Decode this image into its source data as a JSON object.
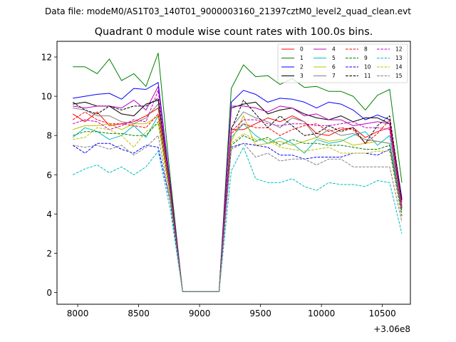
{
  "suptitle": "Data file: modeM0/AS1T03_140T01_9000003160_21397cztM0_level2_quad_clean.evt",
  "chart_data": {
    "type": "line",
    "title": "Quadrant 0 module wise count rates with 100.0s bins.",
    "xlabel": "",
    "ylabel": "",
    "x_offset_label": "+3.06e8",
    "xlim": [
      7830,
      10730
    ],
    "ylim": [
      -0.6,
      12.8
    ],
    "xticks": [
      8000,
      8500,
      9000,
      9500,
      10000,
      10500
    ],
    "xtick_labels": [
      "8000",
      "8500",
      "9000",
      "9500",
      "10000",
      "10500"
    ],
    "yticks": [
      0,
      2,
      4,
      6,
      8,
      10,
      12
    ],
    "ytick_labels": [
      "0",
      "2",
      "4",
      "6",
      "8",
      "10",
      "12"
    ],
    "grid": false,
    "legend_placement": "top-right",
    "legend_columns": 4,
    "x": [
      7960,
      8060,
      8160,
      8260,
      8360,
      8460,
      8560,
      8660,
      8760,
      8860,
      8960,
      9060,
      9160,
      9260,
      9360,
      9460,
      9560,
      9660,
      9760,
      9860,
      9960,
      10060,
      10160,
      10260,
      10360,
      10460,
      10560,
      10660
    ],
    "series": [
      {
        "name": "0",
        "color": "#ff0000",
        "dash": "solid",
        "values": [
          9.1,
          8.7,
          9.2,
          8.5,
          8.6,
          8.7,
          9.0,
          9.4,
          5.2,
          0.05,
          0.05,
          0.05,
          0.05,
          8.3,
          8.3,
          8.6,
          8.9,
          8.7,
          9.0,
          8.7,
          8.1,
          8.0,
          8.3,
          8.4,
          7.9,
          8.2,
          8.4,
          4.4
        ]
      },
      {
        "name": "1",
        "color": "#008000",
        "dash": "solid",
        "values": [
          11.5,
          11.5,
          11.15,
          11.9,
          10.8,
          11.15,
          10.5,
          12.2,
          5.8,
          0.05,
          0.05,
          0.05,
          0.05,
          10.4,
          11.6,
          11.0,
          11.05,
          10.6,
          10.9,
          10.45,
          10.5,
          10.25,
          10.25,
          10.0,
          9.3,
          10.05,
          10.35,
          5.6
        ]
      },
      {
        "name": "2",
        "color": "#0000ff",
        "dash": "solid",
        "values": [
          9.9,
          10.0,
          10.1,
          10.15,
          9.85,
          10.4,
          10.35,
          10.7,
          5.5,
          0.05,
          0.05,
          0.05,
          0.05,
          9.7,
          10.3,
          10.1,
          9.7,
          9.9,
          9.85,
          9.7,
          9.4,
          9.7,
          9.6,
          9.3,
          8.8,
          9.05,
          8.8,
          4.8
        ]
      },
      {
        "name": "3",
        "color": "#000000",
        "dash": "solid",
        "values": [
          9.6,
          9.7,
          9.5,
          9.5,
          9.1,
          9.0,
          9.6,
          9.8,
          5.4,
          0.05,
          0.05,
          0.05,
          0.05,
          9.4,
          9.6,
          9.7,
          9.1,
          9.3,
          9.4,
          9.1,
          8.9,
          8.8,
          9.0,
          8.7,
          8.9,
          8.9,
          8.6,
          4.7
        ]
      },
      {
        "name": "4",
        "color": "#bf00bf",
        "dash": "solid",
        "values": [
          9.5,
          9.4,
          9.5,
          9.5,
          9.4,
          9.8,
          9.3,
          10.5,
          5.4,
          0.05,
          0.05,
          0.05,
          0.05,
          9.5,
          9.5,
          9.4,
          9.2,
          9.5,
          9.4,
          9.0,
          9.1,
          8.8,
          8.8,
          8.5,
          8.6,
          8.7,
          8.6,
          4.6
        ]
      },
      {
        "name": "5",
        "color": "#00bfbf",
        "dash": "solid",
        "values": [
          7.9,
          8.4,
          8.2,
          7.8,
          8.0,
          8.5,
          7.9,
          9.0,
          5.0,
          0.05,
          0.05,
          0.05,
          0.05,
          7.9,
          8.6,
          8.0,
          7.6,
          7.9,
          7.6,
          7.1,
          7.8,
          7.6,
          7.7,
          8.0,
          8.2,
          7.5,
          8.0,
          4.2
        ]
      },
      {
        "name": "6",
        "color": "#bfbf00",
        "dash": "solid",
        "values": [
          8.3,
          8.5,
          8.5,
          8.6,
          8.3,
          8.6,
          8.6,
          9.0,
          5.0,
          0.05,
          0.05,
          0.05,
          0.05,
          7.7,
          9.0,
          7.5,
          7.6,
          7.7,
          7.5,
          7.7,
          7.9,
          7.7,
          7.8,
          7.5,
          7.6,
          7.7,
          7.6,
          4.2
        ]
      },
      {
        "name": "7",
        "color": "#808080",
        "dash": "solid",
        "values": [
          9.4,
          9.3,
          9.0,
          9.0,
          8.7,
          8.6,
          8.9,
          9.6,
          5.2,
          0.05,
          0.05,
          0.05,
          0.05,
          8.4,
          9.2,
          8.9,
          8.7,
          8.4,
          8.9,
          8.7,
          7.9,
          8.3,
          8.0,
          8.1,
          7.8,
          7.7,
          7.6,
          4.3
        ]
      },
      {
        "name": "8",
        "color": "#ff0000",
        "dash": "dashed",
        "values": [
          8.8,
          9.2,
          8.8,
          8.6,
          8.6,
          8.5,
          8.4,
          9.1,
          5.1,
          0.05,
          0.05,
          0.05,
          0.05,
          8.1,
          8.6,
          8.4,
          8.4,
          8.0,
          8.3,
          8.5,
          8.6,
          8.2,
          8.4,
          8.3,
          7.6,
          8.1,
          8.8,
          4.3
        ]
      },
      {
        "name": "9",
        "color": "#008000",
        "dash": "dashed",
        "values": [
          8.0,
          8.2,
          8.2,
          8.1,
          8.1,
          8.0,
          8.0,
          8.7,
          4.9,
          0.05,
          0.05,
          0.05,
          0.05,
          7.5,
          8.0,
          7.7,
          7.9,
          7.5,
          7.8,
          7.6,
          7.6,
          7.5,
          7.5,
          7.4,
          7.3,
          7.3,
          7.5,
          4.1
        ]
      },
      {
        "name": "10",
        "color": "#0000ff",
        "dash": "dashed",
        "values": [
          7.5,
          7.1,
          7.6,
          7.6,
          7.3,
          7.1,
          7.5,
          7.4,
          4.6,
          0.05,
          0.05,
          0.05,
          0.05,
          7.4,
          7.6,
          7.5,
          7.4,
          7.0,
          7.0,
          6.8,
          6.9,
          6.9,
          6.9,
          7.1,
          7.1,
          7.0,
          7.3,
          3.9
        ]
      },
      {
        "name": "11",
        "color": "#000000",
        "dash": "dashed",
        "values": [
          9.7,
          9.3,
          9.1,
          9.5,
          9.3,
          9.5,
          9.5,
          9.9,
          5.3,
          0.05,
          0.05,
          0.05,
          0.05,
          8.3,
          9.8,
          9.1,
          8.4,
          9.0,
          8.5,
          8.0,
          8.1,
          8.5,
          8.2,
          8.4,
          7.6,
          8.5,
          9.0,
          4.7
        ]
      },
      {
        "name": "12",
        "color": "#bf00bf",
        "dash": "dashed",
        "values": [
          8.6,
          8.8,
          8.7,
          8.3,
          8.5,
          8.8,
          8.7,
          10.3,
          5.3,
          0.05,
          0.05,
          0.05,
          0.05,
          8.2,
          8.8,
          8.8,
          8.6,
          8.5,
          8.6,
          8.6,
          8.5,
          8.5,
          8.6,
          8.7,
          8.4,
          8.4,
          8.3,
          4.3
        ]
      },
      {
        "name": "13",
        "color": "#00bfbf",
        "dash": "dashed",
        "values": [
          6.0,
          6.3,
          6.5,
          6.1,
          6.4,
          6.0,
          6.4,
          7.2,
          4.2,
          0.05,
          0.05,
          0.05,
          0.05,
          6.2,
          7.4,
          5.8,
          5.6,
          5.6,
          5.8,
          5.4,
          5.2,
          5.6,
          5.5,
          5.5,
          5.4,
          5.7,
          5.6,
          3.0
        ]
      },
      {
        "name": "14",
        "color": "#bfbf00",
        "dash": "dashed",
        "values": [
          7.8,
          7.9,
          8.4,
          8.3,
          8.0,
          7.4,
          8.2,
          8.6,
          4.8,
          0.05,
          0.05,
          0.05,
          0.05,
          7.6,
          8.1,
          7.8,
          7.8,
          7.4,
          7.3,
          7.2,
          7.3,
          7.4,
          7.1,
          7.1,
          7.1,
          7.2,
          7.2,
          3.8
        ]
      },
      {
        "name": "15",
        "color": "#808080",
        "dash": "dashed",
        "values": [
          7.5,
          7.4,
          7.5,
          7.3,
          7.5,
          7.0,
          7.4,
          8.0,
          4.6,
          0.05,
          0.05,
          0.05,
          0.05,
          7.3,
          7.6,
          6.9,
          7.1,
          6.7,
          6.8,
          6.8,
          6.5,
          6.8,
          6.8,
          6.4,
          6.4,
          6.4,
          6.4,
          3.6
        ]
      }
    ]
  }
}
